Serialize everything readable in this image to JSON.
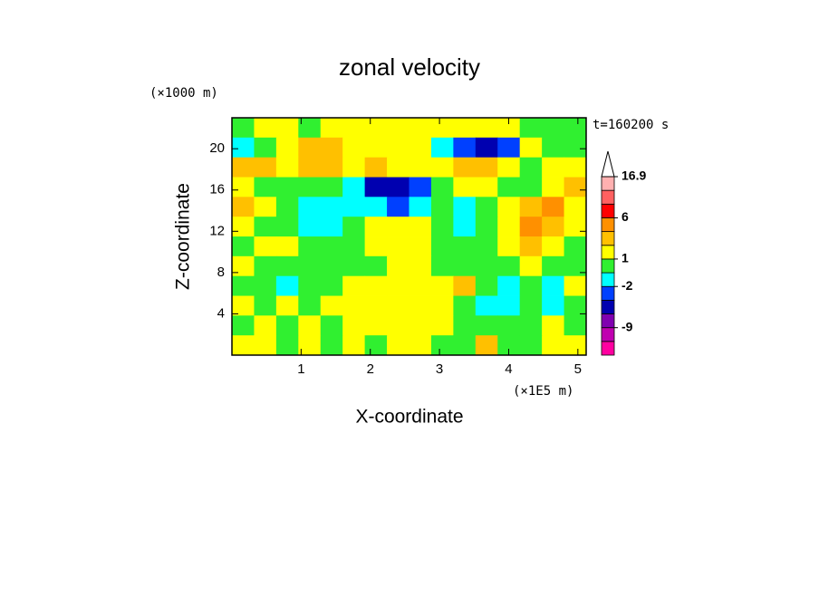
{
  "chart_data": {
    "type": "contour",
    "title": "zonal velocity",
    "xlabel": "X-coordinate",
    "ylabel": "Z-coordinate",
    "x_unit_label": "(×1E5 m)",
    "y_unit_label": "(×1000 m)",
    "time_label": "t=160200 s",
    "xlim": [
      0,
      5.12
    ],
    "ylim": [
      0,
      23
    ],
    "xticks": [
      1,
      2,
      3,
      4,
      5
    ],
    "yticks": [
      4,
      8,
      12,
      16,
      20
    ],
    "x": [
      0.16,
      0.48,
      0.8,
      1.12,
      1.44,
      1.76,
      2.08,
      2.4,
      2.72,
      3.04,
      3.36,
      3.68,
      4.0,
      4.32,
      4.64,
      4.96
    ],
    "y": [
      22.04,
      20.13,
      18.21,
      16.29,
      14.38,
      12.46,
      10.54,
      8.63,
      6.71,
      4.79,
      2.88,
      0.96
    ],
    "z": [
      [
        0,
        1.5,
        1.5,
        0,
        1.5,
        1.5,
        1.5,
        1.5,
        1.5,
        1.5,
        1.5,
        1.5,
        1.5,
        0,
        0,
        0
      ],
      [
        -1.5,
        0,
        1.5,
        3,
        3,
        1.5,
        1.5,
        1.5,
        1.5,
        -1.5,
        -3,
        -5,
        -3,
        1.5,
        0,
        0
      ],
      [
        3,
        3,
        1.5,
        3,
        3,
        1.5,
        3,
        1.5,
        1.5,
        1.5,
        3,
        3,
        1.5,
        0,
        1.5,
        1.5
      ],
      [
        1.5,
        0,
        0,
        0,
        0,
        -1.5,
        -5,
        -5,
        -3,
        0,
        1.5,
        1.5,
        0,
        0,
        1.5,
        3
      ],
      [
        3,
        1.5,
        0,
        -1.5,
        -1.5,
        -1.5,
        -1.5,
        -3,
        -1.5,
        0,
        -1.5,
        0,
        1.5,
        3,
        5,
        1.5
      ],
      [
        1.5,
        0,
        0,
        -1.5,
        -1.5,
        0,
        1.5,
        1.5,
        1.5,
        0,
        -1.5,
        0,
        1.5,
        5,
        3,
        1.5
      ],
      [
        0,
        1.5,
        1.5,
        0,
        0,
        0,
        1.5,
        1.5,
        1.5,
        0,
        0,
        0,
        1.5,
        3,
        1.5,
        0
      ],
      [
        1.5,
        0,
        0,
        0,
        0,
        0,
        0,
        1.5,
        1.5,
        0,
        0,
        0,
        0,
        1.5,
        0,
        0
      ],
      [
        0,
        0,
        -1.5,
        0,
        0,
        1.5,
        1.5,
        1.5,
        1.5,
        1.5,
        3,
        0,
        -1.5,
        0,
        -1.5,
        1.5
      ],
      [
        1.5,
        0,
        1.5,
        0,
        1.5,
        1.5,
        1.5,
        1.5,
        1.5,
        1.5,
        0,
        -1.5,
        -1.5,
        0,
        -1.5,
        0
      ],
      [
        0,
        1.5,
        0,
        1.5,
        0,
        1.5,
        1.5,
        1.5,
        1.5,
        1.5,
        0,
        0,
        0,
        0,
        1.5,
        0
      ],
      [
        1.5,
        1.5,
        0,
        1.5,
        0,
        1.5,
        0,
        1.5,
        1.5,
        0,
        0,
        3,
        0,
        0,
        1.5,
        1.5
      ]
    ],
    "colorbar": {
      "levels": [
        -15,
        -12,
        -9,
        -6,
        -4,
        -2,
        -1,
        1,
        2,
        4,
        6,
        9,
        12,
        16.9
      ],
      "colors": [
        "#ff00a0",
        "#c000b0",
        "#8000b0",
        "#0000b0",
        "#0040ff",
        "#00ffff",
        "#30f030",
        "#ffff00",
        "#ffc000",
        "#ff9000",
        "#ff0000",
        "#ff6060",
        "#ffb0b0"
      ],
      "ticks": [
        -9,
        -2,
        1,
        6,
        16.9
      ]
    }
  }
}
